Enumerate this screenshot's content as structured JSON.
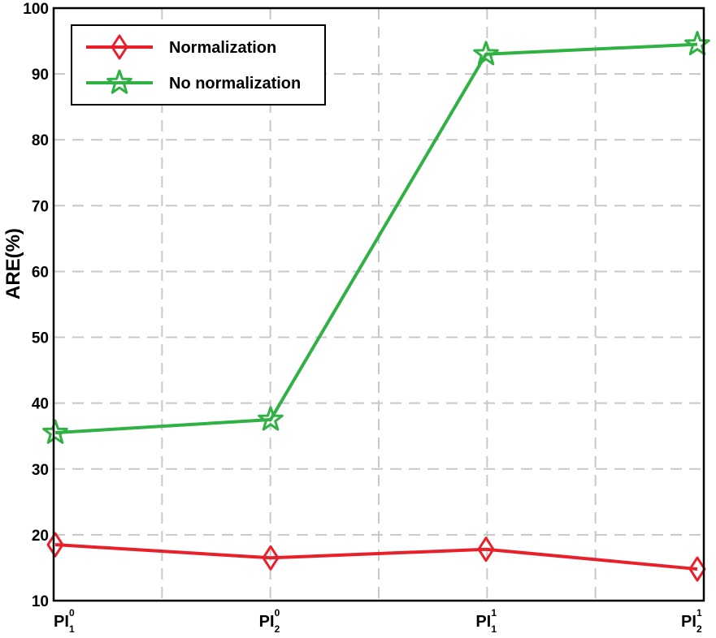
{
  "chart_data": {
    "type": "line",
    "ylabel": "ARE(%)",
    "xlabel": "",
    "ylim": [
      10,
      100
    ],
    "yticks": [
      10,
      20,
      30,
      40,
      50,
      60,
      70,
      80,
      90,
      100
    ],
    "grid": true,
    "legend_position": "top-left",
    "categories": [
      {
        "base": "PI",
        "sup": "0",
        "sub": "1"
      },
      {
        "base": "PI",
        "sup": "0",
        "sub": "2"
      },
      {
        "base": "PI",
        "sup": "1",
        "sub": "1"
      },
      {
        "base": "PI",
        "sup": "1",
        "sub": "2"
      }
    ],
    "series": [
      {
        "name": "Normalization",
        "marker": "diamond",
        "color": "#e8202a",
        "values": [
          18.5,
          16.5,
          17.8,
          14.8
        ]
      },
      {
        "name": "No normalization",
        "marker": "star",
        "color": "#2fb143",
        "values": [
          35.5,
          37.5,
          93.0,
          94.5
        ]
      }
    ]
  }
}
